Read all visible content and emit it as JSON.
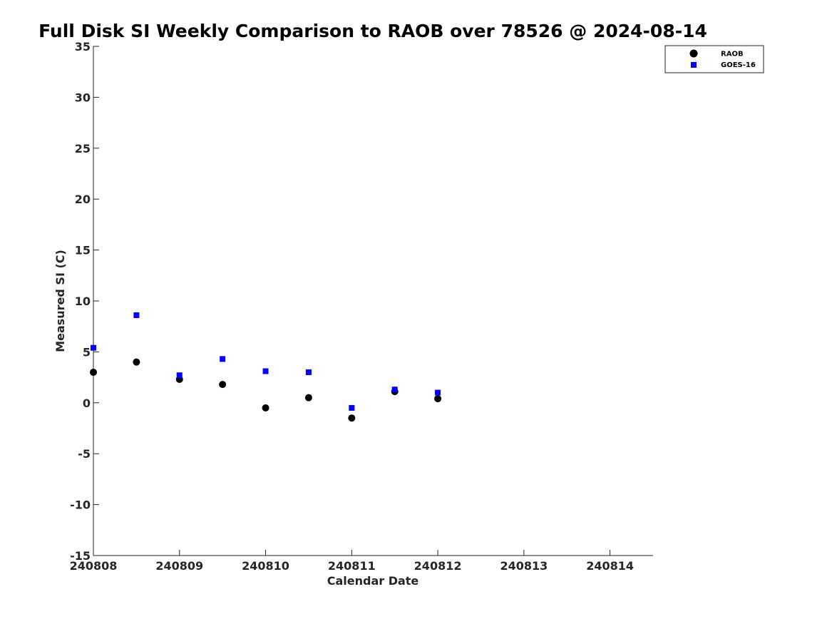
{
  "chart_data": {
    "type": "scatter",
    "title": "Full Disk SI Weekly Comparison to RAOB over 78526 @ 2024-08-14",
    "xlabel": "Calendar Date",
    "ylabel": "Measured SI (C)",
    "xlim": [
      0,
      6.5
    ],
    "ylim": [
      -15,
      35
    ],
    "x_ticks": [
      0,
      1,
      2,
      3,
      4,
      5,
      6
    ],
    "x_tick_labels": [
      "240808",
      "240809",
      "240810",
      "240811",
      "240812",
      "240813",
      "240814"
    ],
    "y_ticks": [
      35,
      30,
      25,
      20,
      15,
      10,
      5,
      0,
      -5,
      -10,
      -15
    ],
    "y_tick_labels": [
      "35",
      "30",
      "25",
      "20",
      "15",
      "10",
      "5",
      "0",
      "-5",
      "-10",
      "-15"
    ],
    "grid": false,
    "legend_position": "top-right",
    "series": [
      {
        "name": "RAOB",
        "marker": "circle",
        "color": "#000000",
        "x": [
          0,
          0.5,
          1,
          1.5,
          2,
          2.5,
          3,
          3.5,
          4
        ],
        "y": [
          3.0,
          4.0,
          2.3,
          1.8,
          -0.5,
          0.5,
          -1.5,
          1.1,
          0.4
        ]
      },
      {
        "name": "GOES-16",
        "marker": "square",
        "color": "#0000ff",
        "x": [
          0,
          0.5,
          1,
          1.5,
          2,
          2.5,
          3,
          3.5,
          4
        ],
        "y": [
          5.4,
          8.6,
          2.7,
          4.3,
          3.1,
          3.0,
          -0.5,
          1.3,
          1.0
        ]
      }
    ]
  }
}
